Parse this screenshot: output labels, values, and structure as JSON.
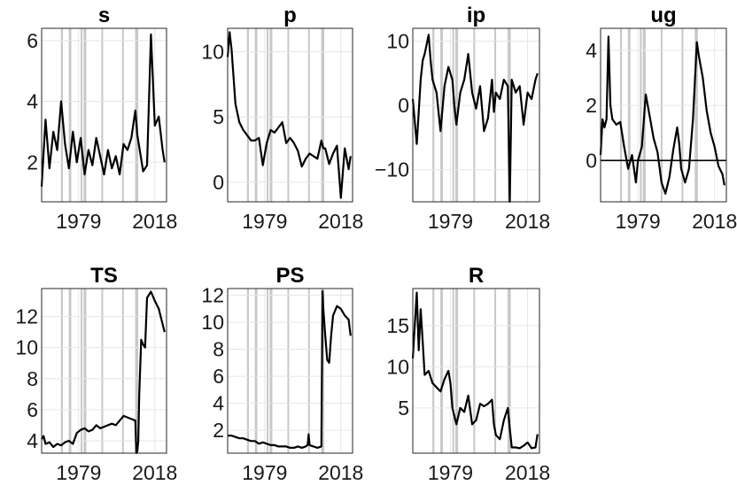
{
  "chart_data": [
    {
      "type": "line",
      "title": "s",
      "xlim": [
        1960,
        2024
      ],
      "ylim": [
        0.7,
        6.4
      ],
      "yticks": [
        2,
        4,
        6
      ],
      "xticks": [
        1979,
        2018
      ],
      "zero_line": false,
      "recessions": [
        [
          1969.9,
          1970.9
        ],
        [
          1973.9,
          1975.2
        ],
        [
          1980.0,
          1980.5
        ],
        [
          1981.5,
          1982.9
        ],
        [
          1990.6,
          1991.2
        ],
        [
          2001.2,
          2001.9
        ],
        [
          2007.9,
          2009.5
        ]
      ],
      "x": [
        1960,
        1962,
        1964,
        1966,
        1968,
        1970,
        1972,
        1974,
        1976,
        1978,
        1980,
        1982,
        1984,
        1986,
        1988,
        1990,
        1992,
        1994,
        1996,
        1998,
        2000,
        2002,
        2004,
        2006,
        2008,
        2009,
        2010,
        2012,
        2014,
        2016,
        2018,
        2020,
        2022,
        2023
      ],
      "y": [
        1.2,
        3.4,
        1.8,
        3.0,
        2.4,
        4.0,
        2.6,
        1.8,
        3.0,
        2.0,
        2.8,
        1.6,
        2.4,
        1.9,
        2.8,
        2.2,
        1.6,
        2.4,
        1.8,
        2.2,
        1.6,
        2.6,
        2.4,
        2.8,
        3.7,
        2.9,
        2.5,
        1.7,
        1.9,
        6.2,
        3.2,
        3.5,
        2.4,
        2.0
      ]
    },
    {
      "type": "line",
      "title": "p",
      "xlim": [
        1960,
        2024
      ],
      "ylim": [
        -1.5,
        11.8
      ],
      "yticks": [
        0,
        5,
        10
      ],
      "xticks": [
        1979,
        2018
      ],
      "zero_line": false,
      "recessions": [
        [
          1969.9,
          1970.9
        ],
        [
          1973.9,
          1975.2
        ],
        [
          1980.0,
          1980.5
        ],
        [
          1981.5,
          1982.9
        ],
        [
          1990.6,
          1991.2
        ],
        [
          2001.2,
          2001.9
        ],
        [
          2007.9,
          2009.5
        ]
      ],
      "x": [
        1960,
        1961,
        1962,
        1964,
        1966,
        1968,
        1970,
        1972,
        1974,
        1976,
        1978,
        1980,
        1982,
        1984,
        1986,
        1988,
        1990,
        1992,
        1994,
        1996,
        1998,
        2000,
        2002,
        2004,
        2006,
        2008,
        2009,
        2010,
        2012,
        2014,
        2016,
        2018,
        2020,
        2022,
        2023
      ],
      "y": [
        9.6,
        11.5,
        10.2,
        6.0,
        4.6,
        4.0,
        3.6,
        3.2,
        3.2,
        3.4,
        1.3,
        3.0,
        4.0,
        3.8,
        4.2,
        4.6,
        3.0,
        3.4,
        3.0,
        2.4,
        1.2,
        1.8,
        2.2,
        2.0,
        1.8,
        3.2,
        2.6,
        2.6,
        1.4,
        2.2,
        2.8,
        -1.2,
        2.6,
        1.0,
        2.0
      ]
    },
    {
      "type": "line",
      "title": "ip",
      "xlim": [
        1960,
        2024
      ],
      "ylim": [
        -15,
        12
      ],
      "yticks": [
        -10,
        0,
        10
      ],
      "xticks": [
        1979,
        2018
      ],
      "zero_line": false,
      "recessions": [
        [
          1969.9,
          1970.9
        ],
        [
          1973.9,
          1975.2
        ],
        [
          1980.0,
          1980.5
        ],
        [
          1981.5,
          1982.9
        ],
        [
          1990.6,
          1991.2
        ],
        [
          2001.2,
          2001.9
        ],
        [
          2007.9,
          2009.5
        ]
      ],
      "x": [
        1960,
        1962,
        1964,
        1965,
        1966,
        1968,
        1969,
        1970,
        1972,
        1974,
        1976,
        1978,
        1980,
        1981,
        1982,
        1984,
        1986,
        1988,
        1990,
        1992,
        1994,
        1996,
        1998,
        2000,
        2001,
        2002,
        2004,
        2006,
        2008,
        2009,
        2010,
        2012,
        2014,
        2016,
        2018,
        2020,
        2022,
        2023
      ],
      "y": [
        1.0,
        -6.0,
        4.0,
        7.0,
        8.0,
        11.0,
        7.0,
        4.0,
        2.0,
        -4.0,
        3.0,
        6.0,
        4.0,
        0.0,
        -3.0,
        2.0,
        4.0,
        8.0,
        2.0,
        -0.5,
        3.0,
        -4.0,
        -2.0,
        4.0,
        -1.0,
        2.0,
        1.0,
        4.0,
        3.0,
        -15.0,
        4.0,
        2.0,
        3.0,
        -3.0,
        2.0,
        1.0,
        4.0,
        5.0
      ]
    },
    {
      "type": "line",
      "title": "ug",
      "xlim": [
        1960,
        2024
      ],
      "ylim": [
        -1.5,
        4.8
      ],
      "yticks": [
        0,
        2,
        4
      ],
      "xticks": [
        1979,
        2018
      ],
      "zero_line": true,
      "recessions": [
        [
          1969.9,
          1970.9
        ],
        [
          1973.9,
          1975.2
        ],
        [
          1980.0,
          1980.5
        ],
        [
          1981.5,
          1982.9
        ],
        [
          1990.6,
          1991.2
        ],
        [
          2001.2,
          2001.9
        ],
        [
          2007.9,
          2009.5
        ]
      ],
      "x": [
        1960,
        1961,
        1962,
        1963,
        1964,
        1965,
        1966,
        1968,
        1970,
        1972,
        1974,
        1976,
        1978,
        1979,
        1981,
        1983,
        1985,
        1987,
        1989,
        1991,
        1993,
        1995,
        1997,
        1999,
        2000,
        2001,
        2003,
        2005,
        2007,
        2009,
        2010,
        2012,
        2014,
        2016,
        2018,
        2020,
        2022,
        2023
      ],
      "y": [
        0.2,
        1.5,
        1.2,
        1.5,
        4.5,
        2.0,
        1.5,
        1.3,
        1.4,
        0.5,
        -0.3,
        0.2,
        -0.8,
        0.0,
        0.5,
        2.4,
        1.6,
        0.8,
        0.3,
        -0.8,
        -1.2,
        -0.6,
        0.4,
        1.2,
        0.6,
        -0.3,
        -0.8,
        -0.3,
        1.5,
        4.3,
        3.8,
        3.0,
        1.8,
        1.0,
        0.5,
        -0.2,
        -0.5,
        -0.9
      ]
    },
    {
      "type": "line",
      "title": "TS",
      "xlim": [
        1960,
        2024
      ],
      "ylim": [
        3.2,
        13.8
      ],
      "yticks": [
        4,
        6,
        8,
        10,
        12
      ],
      "xticks": [
        1979,
        2018
      ],
      "zero_line": false,
      "recessions": [
        [
          1969.9,
          1970.9
        ],
        [
          1973.9,
          1975.2
        ],
        [
          1980.0,
          1980.5
        ],
        [
          1981.5,
          1982.9
        ],
        [
          1990.6,
          1991.2
        ],
        [
          2001.2,
          2001.9
        ],
        [
          2007.9,
          2009.5
        ]
      ],
      "x": [
        1960,
        1961,
        1962,
        1964,
        1966,
        1968,
        1970,
        1972,
        1974,
        1976,
        1978,
        1980,
        1982,
        1984,
        1986,
        1988,
        1990,
        1992,
        1994,
        1996,
        1998,
        2000,
        2002,
        2004,
        2006,
        2008,
        2008.5,
        2009,
        2009.5,
        2010,
        2011,
        2012,
        2013,
        2014,
        2016,
        2018,
        2020,
        2022,
        2023
      ],
      "y": [
        4.1,
        4.3,
        3.8,
        3.9,
        3.6,
        3.8,
        3.7,
        3.9,
        4.0,
        3.8,
        4.5,
        4.7,
        4.8,
        4.6,
        4.7,
        5.0,
        4.8,
        4.9,
        5.0,
        5.1,
        5.0,
        5.3,
        5.6,
        5.5,
        5.4,
        5.3,
        3.2,
        3.3,
        4.0,
        7.0,
        10.5,
        10.2,
        10.0,
        13.2,
        13.6,
        13.0,
        12.5,
        11.5,
        11.0
      ]
    },
    {
      "type": "line",
      "title": "PS",
      "xlim": [
        1960,
        2024
      ],
      "ylim": [
        0.3,
        12.5
      ],
      "yticks": [
        2,
        4,
        6,
        8,
        10,
        12
      ],
      "xticks": [
        1979,
        2018
      ],
      "zero_line": false,
      "recessions": [
        [
          1969.9,
          1970.9
        ],
        [
          1973.9,
          1975.2
        ],
        [
          1980.0,
          1980.5
        ],
        [
          1981.5,
          1982.9
        ],
        [
          1990.6,
          1991.2
        ],
        [
          2001.2,
          2001.9
        ],
        [
          2007.9,
          2009.5
        ]
      ],
      "x": [
        1960,
        1962,
        1964,
        1966,
        1968,
        1970,
        1972,
        1974,
        1976,
        1978,
        1980,
        1982,
        1984,
        1986,
        1988,
        1990,
        1992,
        1994,
        1996,
        1998,
        2000,
        2001,
        2001.5,
        2002,
        2004,
        2006,
        2008,
        2008.6,
        2009,
        2010,
        2011,
        2012,
        2013,
        2014,
        2016,
        2018,
        2020,
        2022,
        2023
      ],
      "y": [
        1.6,
        1.6,
        1.5,
        1.4,
        1.4,
        1.3,
        1.2,
        1.2,
        1.0,
        1.1,
        1.0,
        0.9,
        0.9,
        0.8,
        0.8,
        0.8,
        0.7,
        0.7,
        0.8,
        0.7,
        0.8,
        0.9,
        1.7,
        0.9,
        0.8,
        0.7,
        0.8,
        12.3,
        11.0,
        9.0,
        7.2,
        7.0,
        9.0,
        10.5,
        11.2,
        11.0,
        10.5,
        10.2,
        9.0
      ]
    },
    {
      "type": "line",
      "title": "R",
      "xlim": [
        1960,
        2024
      ],
      "ylim": [
        -0.5,
        19.5
      ],
      "yticks": [
        5,
        10,
        15
      ],
      "xticks": [
        1979,
        2018
      ],
      "zero_line": false,
      "recessions": [
        [
          1969.9,
          1970.9
        ],
        [
          1973.9,
          1975.2
        ],
        [
          1980.0,
          1980.5
        ],
        [
          1981.5,
          1982.9
        ],
        [
          1990.6,
          1991.2
        ],
        [
          2001.2,
          2001.9
        ],
        [
          2007.9,
          2009.5
        ]
      ],
      "x": [
        1960,
        1961,
        1962,
        1963,
        1964,
        1965,
        1966,
        1968,
        1970,
        1972,
        1974,
        1976,
        1978,
        1979,
        1980,
        1982,
        1984,
        1986,
        1988,
        1990,
        1992,
        1994,
        1996,
        1998,
        2000,
        2001,
        2002,
        2004,
        2006,
        2008,
        2009,
        2010,
        2012,
        2014,
        2016,
        2018,
        2020,
        2022,
        2023
      ],
      "y": [
        11.0,
        15.0,
        19.0,
        12.0,
        17.0,
        13.0,
        9.0,
        9.5,
        8.0,
        7.5,
        7.0,
        8.5,
        9.5,
        8.0,
        5.0,
        3.0,
        5.0,
        4.5,
        6.5,
        3.0,
        3.5,
        5.5,
        5.2,
        5.5,
        6.0,
        3.0,
        1.7,
        1.2,
        3.5,
        5.0,
        2.5,
        0.2,
        0.2,
        0.1,
        0.4,
        0.8,
        0.1,
        0.2,
        1.8
      ]
    }
  ]
}
